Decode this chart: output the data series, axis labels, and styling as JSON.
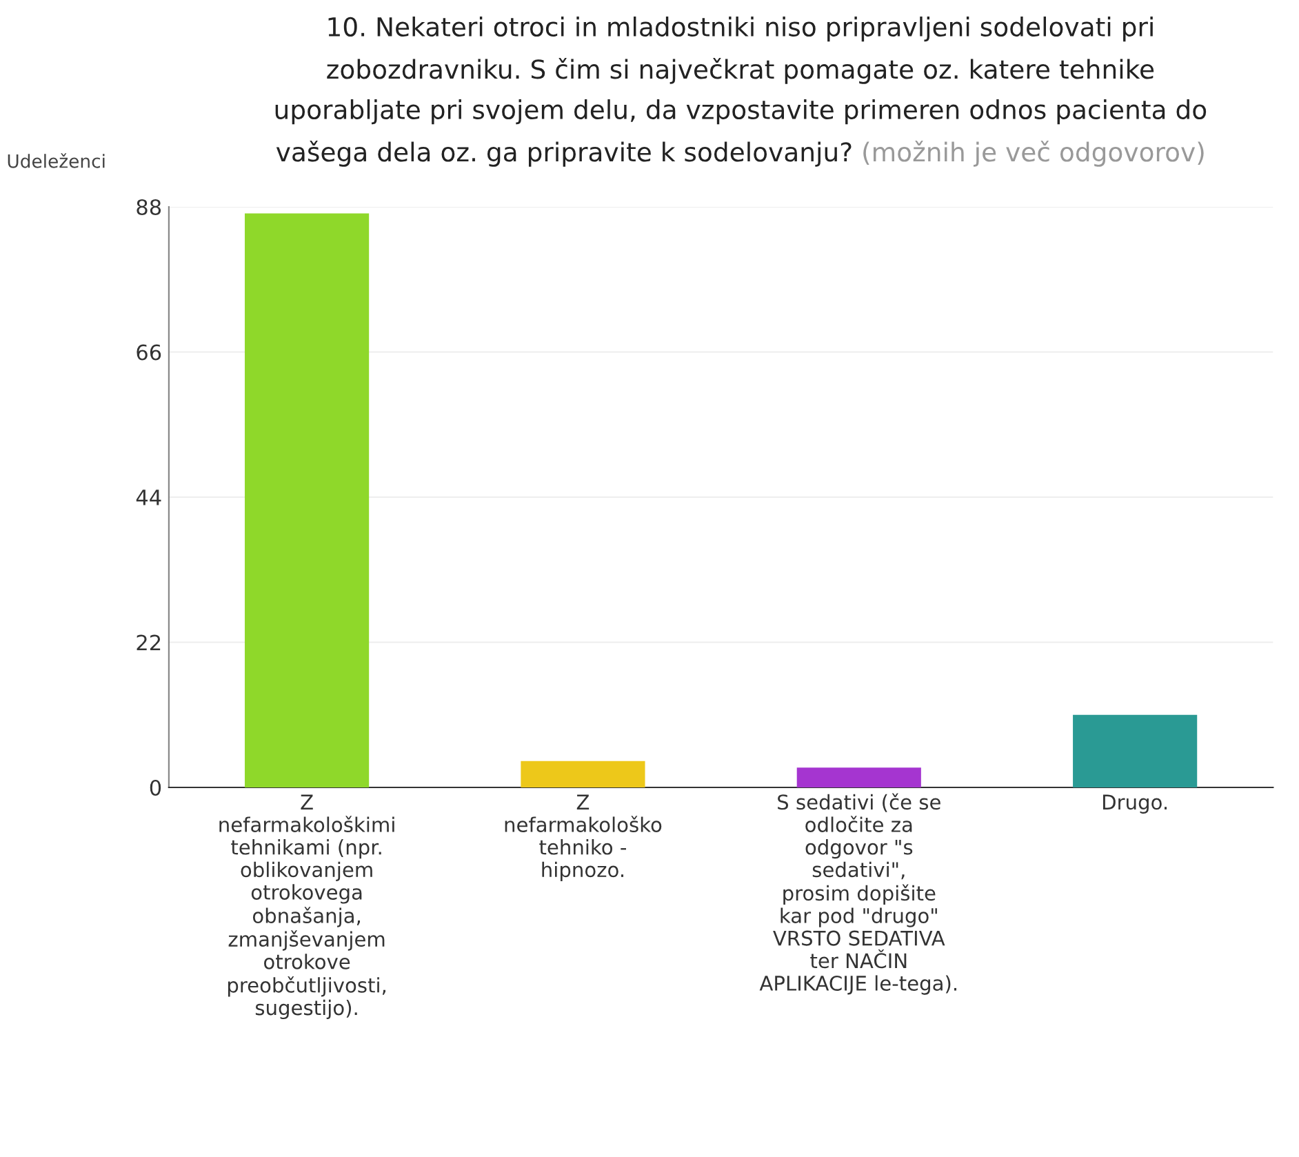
{
  "chart_data": {
    "type": "bar",
    "title": "10. Nekateri otroci in mladostniki niso pripravljeni sodelovati pri\nzobozdravniku. S čim si največkrat pomagate oz. katere tehnike\nuporabljate pri svojem delu, da vzpostavite primeren odnos pacienta do\nvašega dela oz. ga pripravite k sodelovanju?",
    "subtitle": "(možnih je več odgovorov)",
    "ylabel": "Udeleženci",
    "categories": [
      "Z\nnefarmakološkimi\ntehnikami (npr.\noblikovanjem\notrokovega\nobnašanja,\nzmanjševanjem\notrokove\npreobčutljivosti,\nsugestijo).",
      "Z\nnefarmakološko\ntehniko -\nhipnozo.",
      "S sedativi (če se\nodločite za\nodgovor \"s\nsedativi\",\nprosim dopišite\nkar pod \"drugo\"\nVRSTO SEDATIVA\nter NAČIN\nAPLIKACIJE le-tega).",
      "Drugo."
    ],
    "values": [
      87,
      4,
      3,
      11
    ],
    "colors": [
      "#8fd82a",
      "#edc81a",
      "#a535d0",
      "#2a9a94"
    ],
    "ylim": [
      0,
      88
    ],
    "yticks": [
      0,
      22,
      44,
      66,
      88
    ],
    "grid": "y",
    "legend": false
  }
}
